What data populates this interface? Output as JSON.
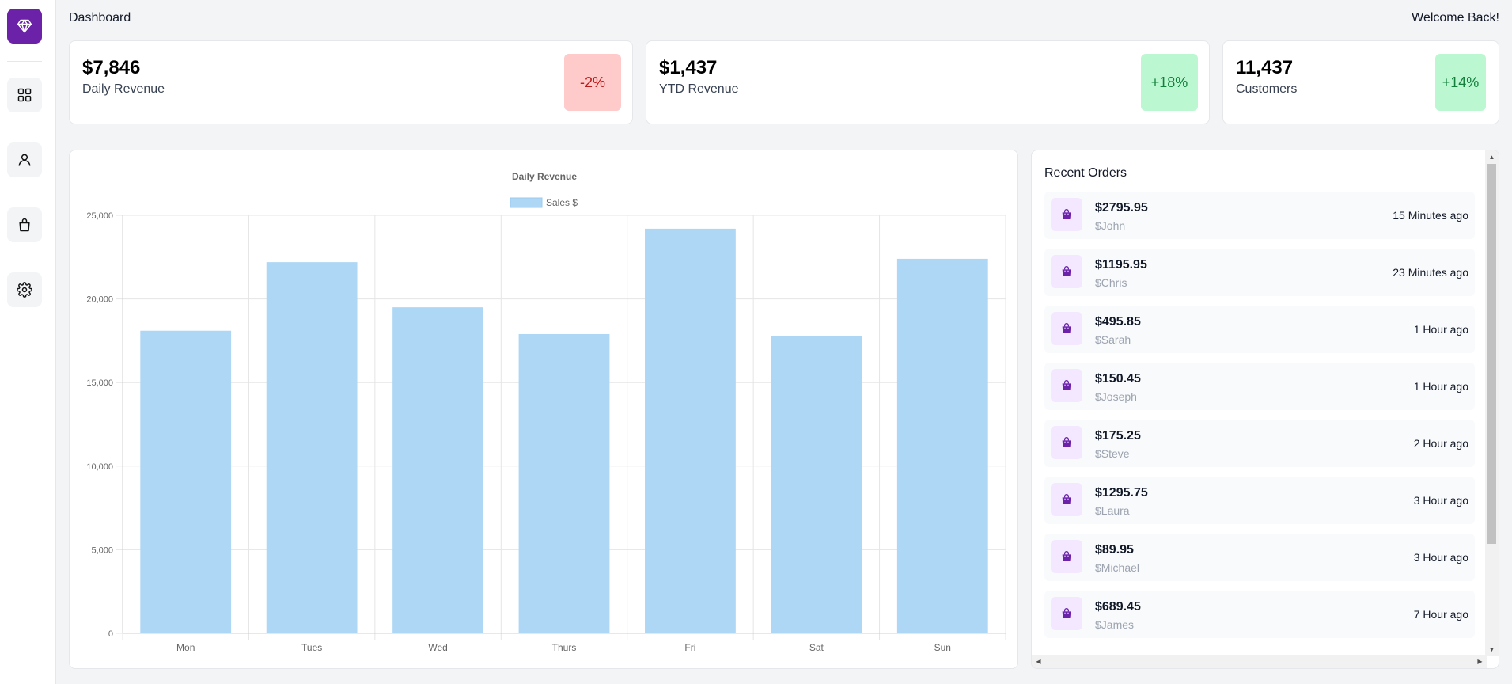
{
  "header": {
    "title": "Dashboard",
    "welcome": "Welcome Back!"
  },
  "sidebar": {
    "logo_icon": "gem-icon",
    "items": [
      {
        "name": "dashboard",
        "icon": "grid-icon"
      },
      {
        "name": "users",
        "icon": "user-icon"
      },
      {
        "name": "orders",
        "icon": "shopping-bag-icon"
      },
      {
        "name": "settings",
        "icon": "gear-icon"
      }
    ]
  },
  "stats": [
    {
      "value": "$7,846",
      "label": "Daily Revenue",
      "change": "-2%",
      "trend": "down"
    },
    {
      "value": "$1,437",
      "label": "YTD Revenue",
      "change": "+18%",
      "trend": "up"
    },
    {
      "value": "11,437",
      "label": "Customers",
      "change": "+14%",
      "trend": "up"
    }
  ],
  "colors": {
    "accent": "#6b21a8",
    "bar_fill": "#aed6f5",
    "negative_badge": "#fecaca",
    "positive_badge": "#bbf7d0"
  },
  "chart_data": {
    "type": "bar",
    "title": "Daily Revenue",
    "categories": [
      "Mon",
      "Tues",
      "Wed",
      "Thurs",
      "Fri",
      "Sat",
      "Sun"
    ],
    "series": [
      {
        "name": "Sales $",
        "values": [
          18100,
          22200,
          19500,
          17900,
          24200,
          17800,
          22400
        ]
      }
    ],
    "ylim": [
      0,
      25000
    ],
    "yticks": [
      0,
      5000,
      10000,
      15000,
      20000,
      25000
    ],
    "ytick_labels": [
      "0",
      "5,000",
      "10,000",
      "15,000",
      "20,000",
      "25,000"
    ],
    "grid": true,
    "legend": "top-center"
  },
  "orders": {
    "title": "Recent Orders",
    "items": [
      {
        "amount": "$2795.95",
        "customer": "$John",
        "time": "15 Minutes ago"
      },
      {
        "amount": "$1195.95",
        "customer": "$Chris",
        "time": "23 Minutes ago"
      },
      {
        "amount": "$495.85",
        "customer": "$Sarah",
        "time": "1 Hour ago"
      },
      {
        "amount": "$150.45",
        "customer": "$Joseph",
        "time": "1 Hour ago"
      },
      {
        "amount": "$175.25",
        "customer": "$Steve",
        "time": "2 Hour ago"
      },
      {
        "amount": "$1295.75",
        "customer": "$Laura",
        "time": "3 Hour ago"
      },
      {
        "amount": "$89.95",
        "customer": "$Michael",
        "time": "3 Hour ago"
      },
      {
        "amount": "$689.45",
        "customer": "$James",
        "time": "7 Hour ago"
      }
    ]
  }
}
